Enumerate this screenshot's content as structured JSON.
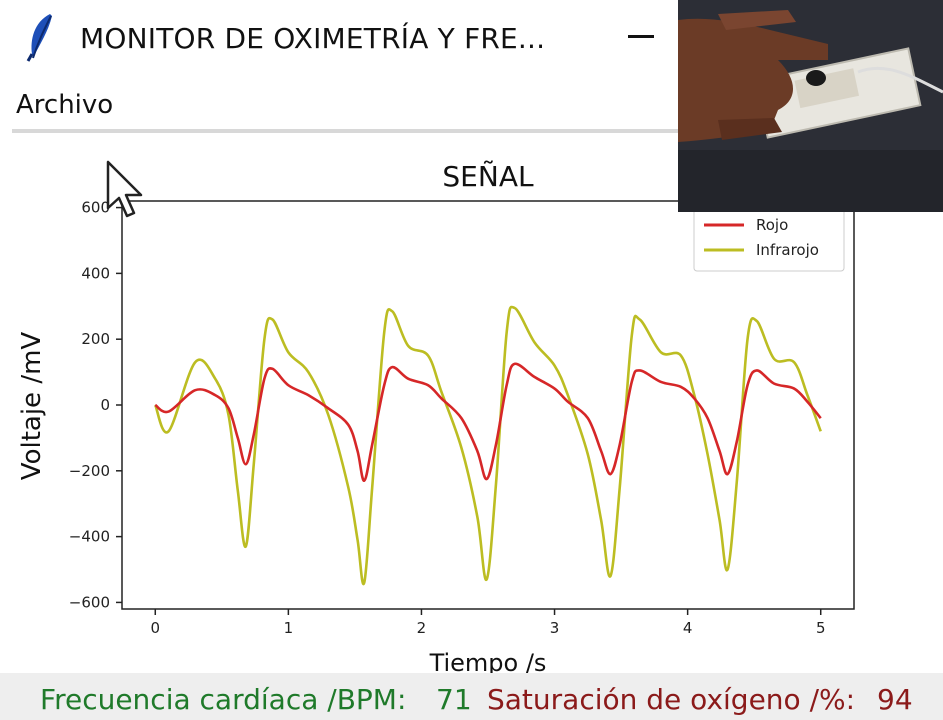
{
  "window": {
    "title": "MONITOR DE OXIMETRÍA Y FRE...",
    "icon": "feather-icon",
    "minimize_label": "—"
  },
  "menu": {
    "items": [
      {
        "label": "Archivo"
      }
    ]
  },
  "chart_data": {
    "type": "line",
    "title": "SEÑAL",
    "xlabel": "Tiempo /s",
    "ylabel": "Voltaje /mV",
    "xlim": [
      -0.25,
      5.25
    ],
    "ylim": [
      -620,
      620
    ],
    "xticks": [
      "0",
      "1",
      "2",
      "3",
      "4",
      "5"
    ],
    "yticks": [
      "600",
      "400",
      "200",
      "0",
      "−200",
      "−400",
      "−600"
    ],
    "legend_position": "top-right",
    "grid": false,
    "series": [
      {
        "name": "Rojo",
        "color": "#d62728",
        "points": [
          [
            0,
            0
          ],
          [
            0.1,
            -20
          ],
          [
            0.3,
            45
          ],
          [
            0.45,
            30
          ],
          [
            0.55,
            -10
          ],
          [
            0.62,
            -100
          ],
          [
            0.68,
            -180
          ],
          [
            0.74,
            -90
          ],
          [
            0.82,
            80
          ],
          [
            0.88,
            110
          ],
          [
            1.0,
            60
          ],
          [
            1.15,
            30
          ],
          [
            1.3,
            -10
          ],
          [
            1.45,
            -60
          ],
          [
            1.52,
            -140
          ],
          [
            1.57,
            -230
          ],
          [
            1.63,
            -120
          ],
          [
            1.72,
            60
          ],
          [
            1.78,
            115
          ],
          [
            1.9,
            80
          ],
          [
            2.05,
            60
          ],
          [
            2.15,
            20
          ],
          [
            2.3,
            -40
          ],
          [
            2.42,
            -140
          ],
          [
            2.49,
            -225
          ],
          [
            2.56,
            -120
          ],
          [
            2.64,
            60
          ],
          [
            2.7,
            125
          ],
          [
            2.85,
            85
          ],
          [
            3.0,
            50
          ],
          [
            3.1,
            10
          ],
          [
            3.25,
            -40
          ],
          [
            3.35,
            -140
          ],
          [
            3.42,
            -210
          ],
          [
            3.49,
            -120
          ],
          [
            3.58,
            70
          ],
          [
            3.64,
            105
          ],
          [
            3.8,
            70
          ],
          [
            3.95,
            55
          ],
          [
            4.05,
            20
          ],
          [
            4.15,
            -40
          ],
          [
            4.24,
            -140
          ],
          [
            4.3,
            -210
          ],
          [
            4.37,
            -110
          ],
          [
            4.45,
            60
          ],
          [
            4.52,
            105
          ],
          [
            4.65,
            65
          ],
          [
            4.8,
            50
          ],
          [
            4.9,
            10
          ],
          [
            5.0,
            -40
          ]
        ]
      },
      {
        "name": "Infrarojo",
        "color": "#bcbd22",
        "points": [
          [
            0,
            0
          ],
          [
            0.1,
            -80
          ],
          [
            0.3,
            130
          ],
          [
            0.45,
            80
          ],
          [
            0.55,
            -30
          ],
          [
            0.62,
            -260
          ],
          [
            0.68,
            -430
          ],
          [
            0.74,
            -180
          ],
          [
            0.82,
            200
          ],
          [
            0.88,
            260
          ],
          [
            1.0,
            160
          ],
          [
            1.15,
            100
          ],
          [
            1.3,
            -30
          ],
          [
            1.45,
            -250
          ],
          [
            1.52,
            -410
          ],
          [
            1.57,
            -540
          ],
          [
            1.63,
            -250
          ],
          [
            1.72,
            220
          ],
          [
            1.78,
            285
          ],
          [
            1.9,
            180
          ],
          [
            2.05,
            150
          ],
          [
            2.15,
            40
          ],
          [
            2.3,
            -130
          ],
          [
            2.42,
            -340
          ],
          [
            2.49,
            -530
          ],
          [
            2.56,
            -240
          ],
          [
            2.64,
            220
          ],
          [
            2.7,
            295
          ],
          [
            2.85,
            190
          ],
          [
            3.0,
            120
          ],
          [
            3.1,
            30
          ],
          [
            3.25,
            -150
          ],
          [
            3.35,
            -350
          ],
          [
            3.42,
            -520
          ],
          [
            3.49,
            -250
          ],
          [
            3.58,
            210
          ],
          [
            3.64,
            260
          ],
          [
            3.8,
            160
          ],
          [
            3.95,
            150
          ],
          [
            4.05,
            30
          ],
          [
            4.15,
            -150
          ],
          [
            4.24,
            -350
          ],
          [
            4.3,
            -500
          ],
          [
            4.37,
            -230
          ],
          [
            4.45,
            200
          ],
          [
            4.52,
            255
          ],
          [
            4.65,
            140
          ],
          [
            4.8,
            130
          ],
          [
            4.9,
            30
          ],
          [
            5.0,
            -80
          ]
        ]
      }
    ]
  },
  "status": {
    "hr_label": "Frecuencia cardíaca /BPM:",
    "hr_value": "71",
    "hr_color": "#1f7a2a",
    "spo2_label": "Saturación de oxígeno /%:",
    "spo2_value": "94",
    "spo2_color": "#8b1a1a"
  },
  "inset": {
    "content": "webcam-feed-finger-on-sensor"
  }
}
